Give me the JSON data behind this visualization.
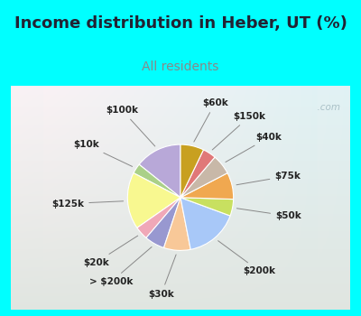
{
  "title": "Income distribution in Heber, UT (%)",
  "subtitle": "All residents",
  "background_color": "#00FFFF",
  "chart_bg_top_left": "#e8f5f0",
  "chart_bg_bottom_right": "#c8e8d8",
  "title_color": "#222233",
  "subtitle_color": "#888888",
  "labels": [
    "$100k",
    "$10k",
    "$125k",
    "$20k",
    "> $200k",
    "$30k",
    "$200k",
    "$50k",
    "$75k",
    "$40k",
    "$150k",
    "$60k"
  ],
  "values": [
    14,
    3,
    17,
    4,
    6,
    8,
    16,
    5,
    8,
    6,
    4,
    7
  ],
  "colors": [
    "#b8a8d8",
    "#aad088",
    "#f8f890",
    "#f0a8b8",
    "#9898d0",
    "#f8c898",
    "#a8c8f8",
    "#c8e060",
    "#f0a850",
    "#c8b8a8",
    "#e07878",
    "#c8a020"
  ],
  "watermark": "@  City-Data.com",
  "watermark_color": "#a0b8c0",
  "label_fontsize": 7.5,
  "title_fontsize": 13,
  "subtitle_fontsize": 10,
  "startangle": 90
}
